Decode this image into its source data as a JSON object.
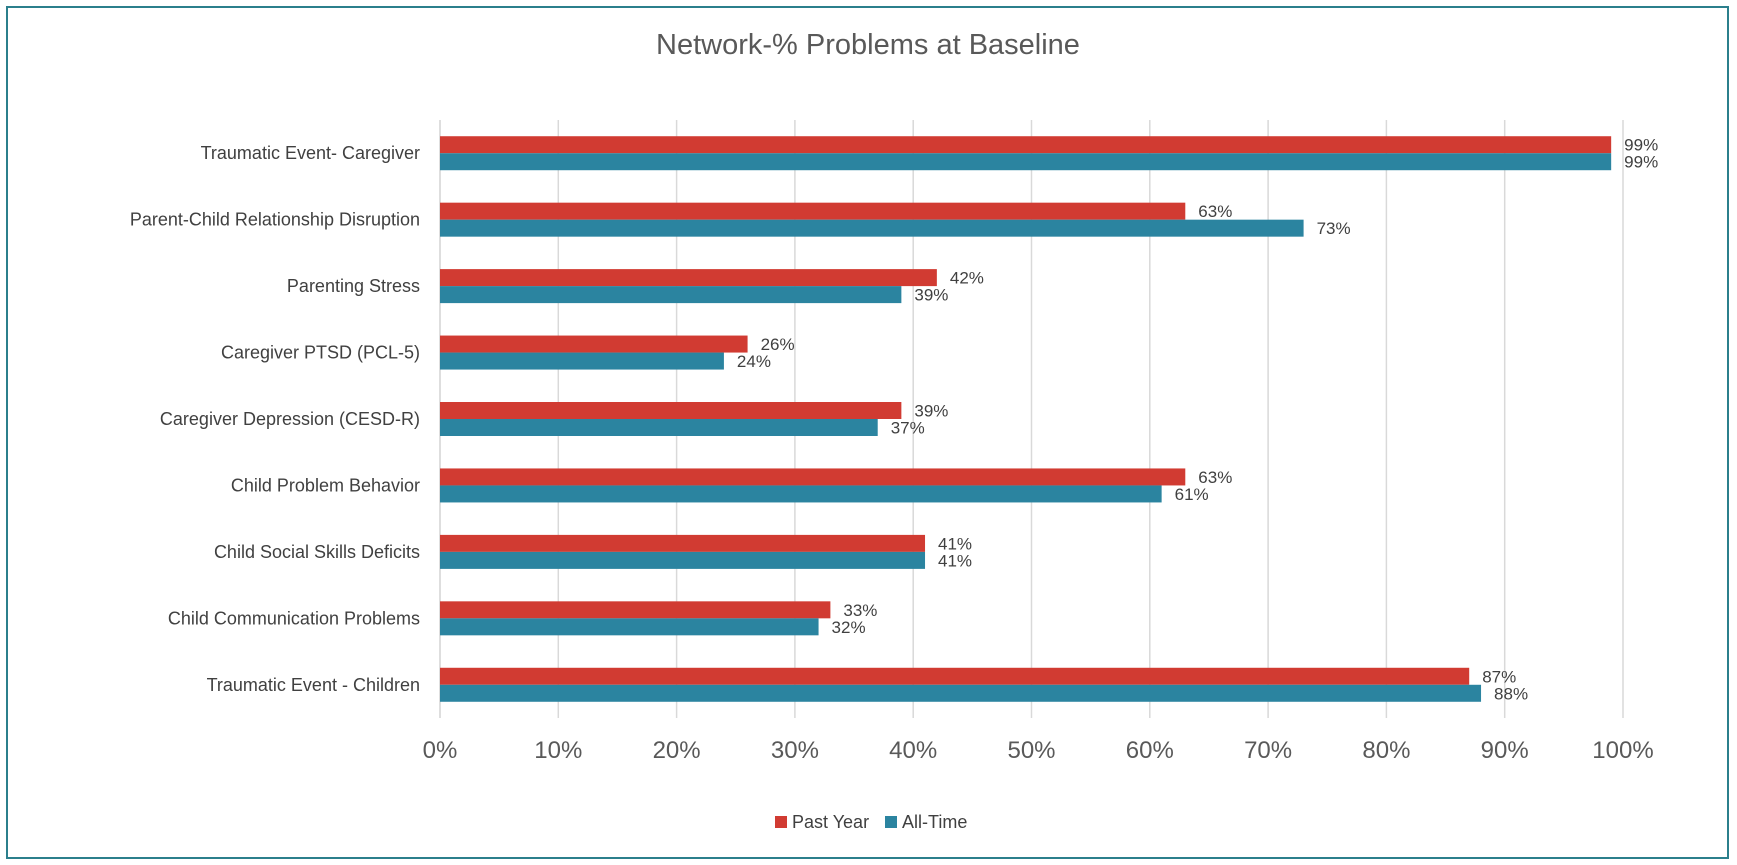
{
  "chart_data": {
    "type": "bar",
    "orientation": "horizontal",
    "title": "Network-% Problems at Baseline",
    "categories": [
      "Traumatic Event- Caregiver",
      "Parent-Child Relationship Disruption",
      "Parenting Stress",
      "Caregiver PTSD (PCL-5)",
      "Caregiver Depression (CESD-R)",
      "Child Problem Behavior",
      "Child Social Skills Deficits",
      "Child Communication Problems",
      "Traumatic Event - Children"
    ],
    "series": [
      {
        "name": "Past Year",
        "color": "#d13b32",
        "values": [
          99,
          63,
          42,
          26,
          39,
          63,
          41,
          33,
          87
        ]
      },
      {
        "name": "All-Time",
        "color": "#2b84a0",
        "values": [
          99,
          73,
          39,
          24,
          37,
          61,
          41,
          32,
          88
        ]
      }
    ],
    "xlim": [
      0,
      100
    ],
    "xticks": [
      0,
      10,
      20,
      30,
      40,
      50,
      60,
      70,
      80,
      90,
      100
    ],
    "tick_suffix": "%",
    "label_suffix": "%",
    "grid": true,
    "legend_position": "bottom"
  }
}
